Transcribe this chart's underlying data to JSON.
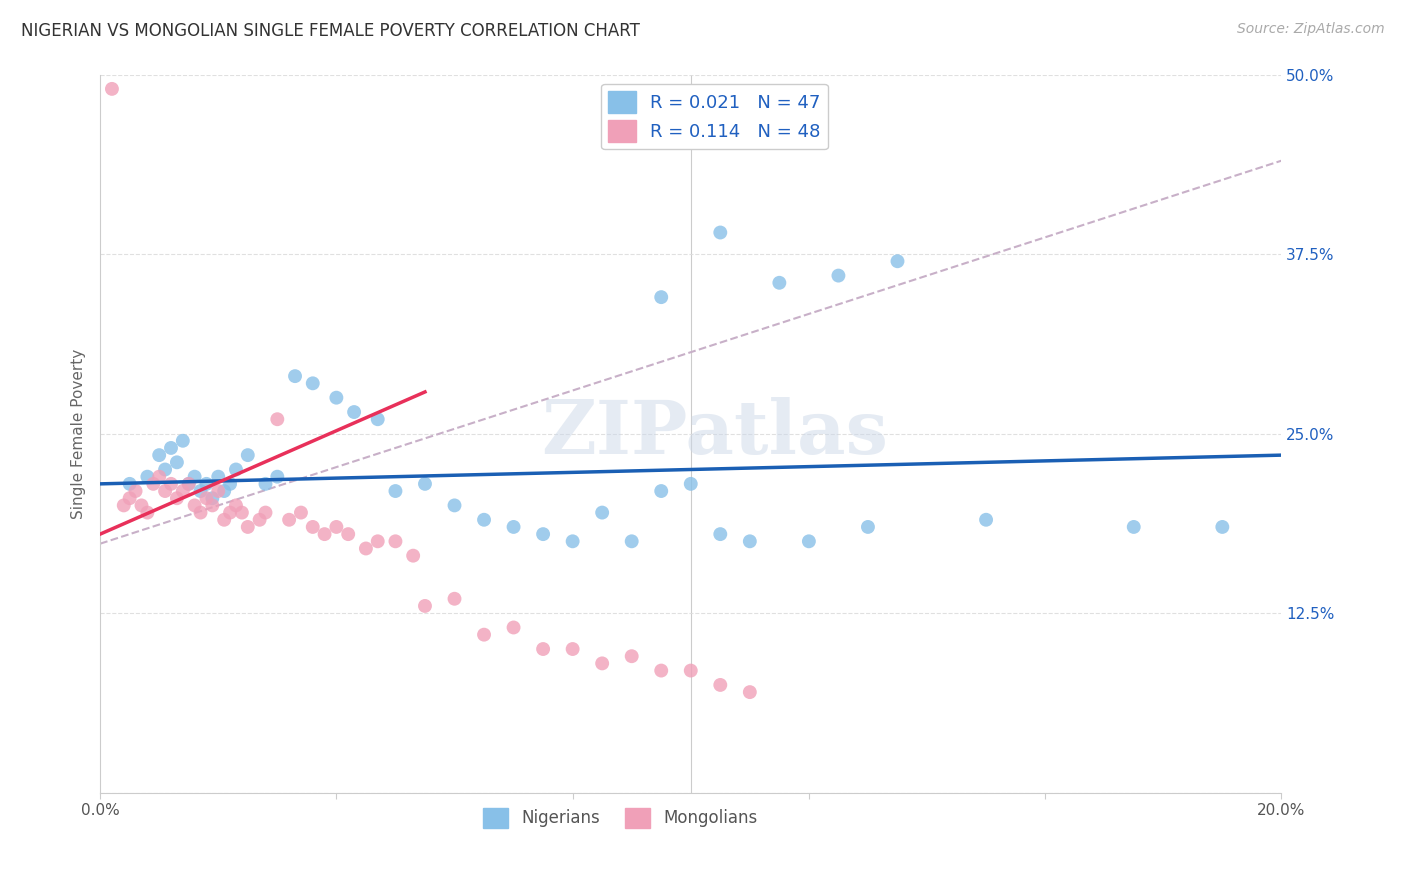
{
  "title": "NIGERIAN VS MONGOLIAN SINGLE FEMALE POVERTY CORRELATION CHART",
  "source": "Source: ZipAtlas.com",
  "ylabel": "Single Female Poverty",
  "nigerians_x": [
    0.005,
    0.008,
    0.01,
    0.011,
    0.012,
    0.013,
    0.014,
    0.015,
    0.016,
    0.017,
    0.018,
    0.019,
    0.02,
    0.021,
    0.022,
    0.023,
    0.025,
    0.028,
    0.03,
    0.033,
    0.036,
    0.04,
    0.043,
    0.047,
    0.05,
    0.055,
    0.06,
    0.065,
    0.07,
    0.075,
    0.08,
    0.085,
    0.09,
    0.095,
    0.1,
    0.105,
    0.11,
    0.12,
    0.13,
    0.15,
    0.175,
    0.19,
    0.095,
    0.105,
    0.115,
    0.125,
    0.135
  ],
  "nigerians_y": [
    0.215,
    0.22,
    0.235,
    0.225,
    0.24,
    0.23,
    0.245,
    0.215,
    0.22,
    0.21,
    0.215,
    0.205,
    0.22,
    0.21,
    0.215,
    0.225,
    0.235,
    0.215,
    0.22,
    0.29,
    0.285,
    0.275,
    0.265,
    0.26,
    0.21,
    0.215,
    0.2,
    0.19,
    0.185,
    0.18,
    0.175,
    0.195,
    0.175,
    0.21,
    0.215,
    0.18,
    0.175,
    0.175,
    0.185,
    0.19,
    0.185,
    0.185,
    0.345,
    0.39,
    0.355,
    0.36,
    0.37
  ],
  "mongolians_x": [
    0.002,
    0.004,
    0.005,
    0.006,
    0.007,
    0.008,
    0.009,
    0.01,
    0.011,
    0.012,
    0.013,
    0.014,
    0.015,
    0.016,
    0.017,
    0.018,
    0.019,
    0.02,
    0.021,
    0.022,
    0.023,
    0.024,
    0.025,
    0.027,
    0.028,
    0.03,
    0.032,
    0.034,
    0.036,
    0.038,
    0.04,
    0.042,
    0.045,
    0.047,
    0.05,
    0.053,
    0.055,
    0.06,
    0.065,
    0.07,
    0.075,
    0.08,
    0.085,
    0.09,
    0.095,
    0.1,
    0.105,
    0.11
  ],
  "mongolians_y": [
    0.49,
    0.2,
    0.205,
    0.21,
    0.2,
    0.195,
    0.215,
    0.22,
    0.21,
    0.215,
    0.205,
    0.21,
    0.215,
    0.2,
    0.195,
    0.205,
    0.2,
    0.21,
    0.19,
    0.195,
    0.2,
    0.195,
    0.185,
    0.19,
    0.195,
    0.26,
    0.19,
    0.195,
    0.185,
    0.18,
    0.185,
    0.18,
    0.17,
    0.175,
    0.175,
    0.165,
    0.13,
    0.135,
    0.11,
    0.115,
    0.1,
    0.1,
    0.09,
    0.095,
    0.085,
    0.085,
    0.075,
    0.07
  ],
  "blue_color": "#88c0e8",
  "pink_color": "#f0a0b8",
  "blue_line_color": "#1a5fb4",
  "pink_line_color": "#e8305a",
  "dashed_line_color": "#c8b0c8",
  "R_nigerian": 0.021,
  "N_nigerian": 47,
  "R_mongolian": 0.114,
  "N_mongolian": 48,
  "legend_text_color": "#2060c0",
  "watermark": "ZIPatlas",
  "background_color": "#ffffff",
  "grid_color": "#dddddd",
  "xlim": [
    0.0,
    0.2
  ],
  "ylim": [
    0.0,
    0.5
  ],
  "x_ticks": [
    0.0,
    0.04,
    0.08,
    0.12,
    0.16,
    0.2
  ],
  "y_ticks": [
    0.0,
    0.125,
    0.25,
    0.375,
    0.5
  ],
  "y_tick_labels": [
    "",
    "12.5%",
    "25.0%",
    "37.5%",
    "50.0%"
  ]
}
